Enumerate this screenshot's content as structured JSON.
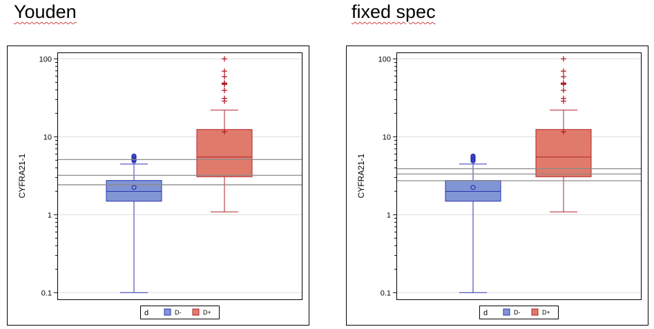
{
  "chart_data": [
    {
      "type": "box",
      "title": "Youden",
      "xlabel": "",
      "ylabel": "CYFRA21-1",
      "yscale": "log",
      "ylim": [
        0.08,
        125
      ],
      "yticks": [
        0.1,
        1,
        10,
        100
      ],
      "ytick_labels": [
        "0.1",
        "1",
        "10",
        "100"
      ],
      "grid": true,
      "legend": {
        "title": "d",
        "position": "bottom",
        "entries": [
          "D-",
          "D+"
        ]
      },
      "reference_lines": [
        5.1,
        3.2,
        2.42
      ],
      "groups": [
        {
          "name": "D-",
          "color": "#8096d4",
          "edge": "#2b33b0",
          "whisker_low": 0.1,
          "q1": 1.49,
          "median": 1.99,
          "q3": 2.75,
          "whisker_high": 4.46,
          "mean": 2.24,
          "outliers": [
            4.9,
            5.05,
            5.2,
            5.35,
            5.5,
            5.65
          ]
        },
        {
          "name": "D+",
          "color": "#e07b6c",
          "edge": "#b0202a",
          "whisker_low": 1.09,
          "q1": 3.07,
          "median": 5.5,
          "q3": 12.4,
          "whisker_high": 22,
          "mean": 11.6,
          "outliers": [
            28.7,
            31.1,
            39.4,
            47,
            48,
            49,
            59,
            69.5,
            100
          ]
        }
      ]
    },
    {
      "type": "box",
      "title": "fixed spec",
      "xlabel": "",
      "ylabel": "CYFRA21-1",
      "yscale": "log",
      "ylim": [
        0.08,
        125
      ],
      "yticks": [
        0.1,
        1,
        10,
        100
      ],
      "ytick_labels": [
        "0.1",
        "1",
        "10",
        "100"
      ],
      "grid": true,
      "legend": {
        "title": "d",
        "position": "bottom",
        "entries": [
          "D-",
          "D+"
        ]
      },
      "reference_lines": [
        3.89,
        3.33,
        2.73
      ],
      "groups": [
        {
          "name": "D-",
          "color": "#8096d4",
          "edge": "#2b33b0",
          "whisker_low": 0.1,
          "q1": 1.49,
          "median": 1.99,
          "q3": 2.75,
          "whisker_high": 4.46,
          "mean": 2.24,
          "outliers": [
            4.9,
            5.05,
            5.2,
            5.35,
            5.5,
            5.65
          ]
        },
        {
          "name": "D+",
          "color": "#e07b6c",
          "edge": "#b0202a",
          "whisker_low": 1.09,
          "q1": 3.07,
          "median": 5.5,
          "q3": 12.4,
          "whisker_high": 22,
          "mean": 11.6,
          "outliers": [
            28.7,
            31.1,
            39.4,
            47,
            48,
            49,
            59,
            69.5,
            100
          ]
        }
      ]
    }
  ]
}
